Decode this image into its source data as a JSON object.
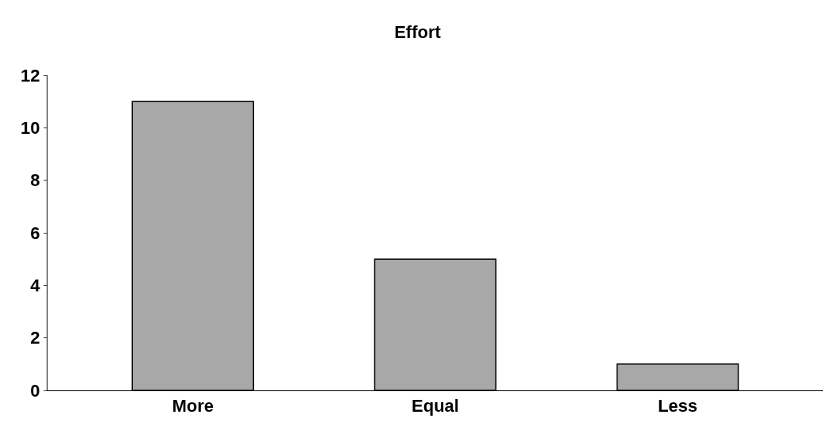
{
  "chart_data": {
    "type": "bar",
    "title": "Effort",
    "categories": [
      "More",
      "Equal",
      "Less"
    ],
    "values": [
      11,
      5,
      1
    ],
    "color": "#a8a8a8",
    "ylim": [
      0,
      12
    ],
    "yticks": [
      0,
      2,
      4,
      6,
      8,
      10,
      12
    ]
  }
}
